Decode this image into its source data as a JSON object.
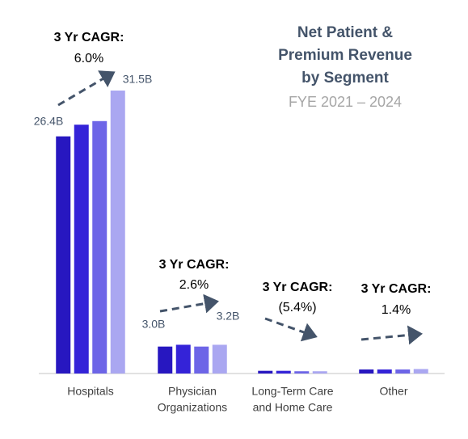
{
  "chart_data": {
    "type": "bar",
    "title": [
      "Net Patient &",
      "Premium Revenue",
      "by Segment"
    ],
    "subtitle": "FYE 2021 – 2024",
    "categories": [
      [
        "Hospitals"
      ],
      [
        "Physician",
        "Organizations"
      ],
      [
        "Long-Term Care",
        "and Home Care"
      ],
      [
        "Other"
      ]
    ],
    "series": [
      {
        "color": "#2717c0",
        "values": [
          26.4,
          3.0,
          0.3,
          0.45
        ],
        "value_labels": [
          "26.4B",
          "3.0B",
          null,
          null
        ]
      },
      {
        "color": "#3423d8",
        "values": [
          27.7,
          3.2,
          0.3,
          0.45
        ],
        "value_labels": [
          null,
          null,
          null,
          null
        ]
      },
      {
        "color": "#6d65e7",
        "values": [
          28.1,
          3.0,
          0.25,
          0.45
        ],
        "value_labels": [
          null,
          null,
          null,
          null
        ]
      },
      {
        "color": "#aaa7f1",
        "values": [
          31.5,
          3.2,
          0.25,
          0.5
        ],
        "value_labels": [
          "31.5B",
          "3.2B",
          null,
          null
        ]
      }
    ],
    "annotations": [
      {
        "heading": "3 Yr CAGR:",
        "value": "6.0%"
      },
      {
        "heading": "3 Yr CAGR:",
        "value": "2.6%"
      },
      {
        "heading": "3 Yr CAGR:",
        "value": "(5.4%)"
      },
      {
        "heading": "3 Yr CAGR:",
        "value": "1.4%"
      }
    ]
  }
}
